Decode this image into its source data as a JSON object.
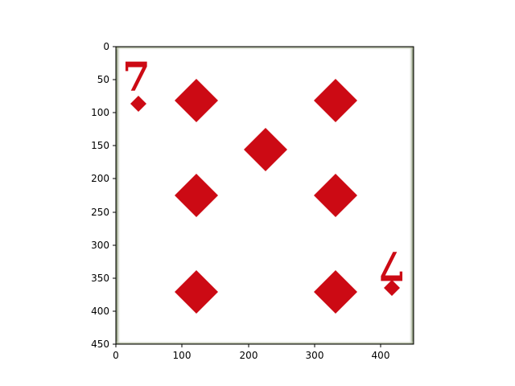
{
  "image": {
    "subject": "playing card",
    "card_rank": "7",
    "card_suit": "diamonds",
    "pip_count": 7,
    "suit_color": "#cc0a14",
    "card_face_color": "#ffffff",
    "card_edge_color": "#5a6b3a"
  },
  "axes": {
    "x_ticks": [
      "0",
      "100",
      "200",
      "300",
      "400"
    ],
    "y_ticks": [
      "0",
      "50",
      "100",
      "150",
      "200",
      "250",
      "300",
      "350",
      "400",
      "450"
    ],
    "xlim": [
      0,
      450
    ],
    "ylim": [
      450,
      0
    ],
    "y_inverted": true
  }
}
